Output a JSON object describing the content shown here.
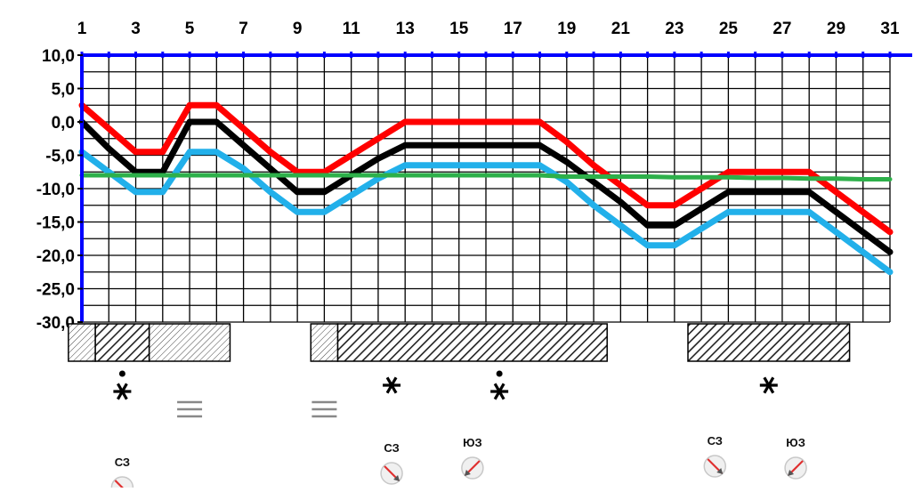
{
  "chart_data": {
    "type": "line",
    "x": [
      1,
      2,
      3,
      4,
      5,
      6,
      7,
      8,
      9,
      10,
      11,
      12,
      13,
      14,
      15,
      16,
      17,
      18,
      19,
      20,
      21,
      22,
      23,
      24,
      25,
      26,
      27,
      28,
      29,
      30,
      31
    ],
    "x_tick_labels": [
      "1",
      "3",
      "5",
      "7",
      "9",
      "11",
      "13",
      "15",
      "17",
      "19",
      "21",
      "23",
      "25",
      "27",
      "29",
      "31"
    ],
    "y_tick_labels": [
      "10,0",
      "5,0",
      "0,0",
      "-5,0",
      "-10,0",
      "-15,0",
      "-20,0",
      "-25,0",
      "-30,0"
    ],
    "ylim": [
      -30,
      10
    ],
    "xlim": [
      1,
      31
    ],
    "grid": true,
    "series": [
      {
        "color": "#ff0000",
        "values": [
          2.5,
          -1,
          -4.5,
          -4.5,
          2.5,
          2.5,
          -1,
          -4.5,
          -7.5,
          -7.5,
          -5,
          -2.5,
          0,
          0,
          0,
          0,
          0,
          0,
          -3,
          -6.5,
          -9.5,
          -12.5,
          -12.5,
          -10,
          -7.5,
          -7.5,
          -7.5,
          -7.5,
          -10.5,
          -13.5,
          -16.5
        ]
      },
      {
        "color": "#000000",
        "values": [
          0,
          -4,
          -7.5,
          -7.5,
          0,
          0,
          -3.5,
          -7,
          -10.5,
          -10.5,
          -8,
          -5.5,
          -3.5,
          -3.5,
          -3.5,
          -3.5,
          -3.5,
          -3.5,
          -6,
          -9,
          -12,
          -15.5,
          -15.5,
          -13,
          -10.5,
          -10.5,
          -10.5,
          -10.5,
          -13.5,
          -16.5,
          -19.5
        ]
      },
      {
        "color": "#22b0ea",
        "values": [
          -4.5,
          -7.5,
          -10.5,
          -10.5,
          -4.5,
          -4.5,
          -7,
          -10.5,
          -13.5,
          -13.5,
          -11,
          -8.5,
          -6.5,
          -6.5,
          -6.5,
          -6.5,
          -6.5,
          -6.5,
          -9,
          -12.5,
          -15.5,
          -18.5,
          -18.5,
          -16,
          -13.5,
          -13.5,
          -13.5,
          -13.5,
          -16.5,
          -19.5,
          -22.5
        ]
      },
      {
        "color": "#2db04a",
        "values": [
          -8,
          -8,
          -8,
          -8,
          -8,
          -8,
          -8,
          -8,
          -8,
          -8,
          -8,
          -8,
          -8,
          -8,
          -8,
          -8,
          -8,
          -8,
          -8.2,
          -8.2,
          -8.2,
          -8.2,
          -8.3,
          -8.3,
          -8.3,
          -8.4,
          -8.4,
          -8.5,
          -8.5,
          -8.6,
          -8.6
        ]
      }
    ],
    "precipitation_bars": [
      {
        "start_day": 1,
        "end_day": 1,
        "pattern": "light"
      },
      {
        "start_day": 2,
        "end_day": 3,
        "pattern": "dense"
      },
      {
        "start_day": 4,
        "end_day": 6,
        "pattern": "light"
      },
      {
        "start_day": 10,
        "end_day": 10,
        "pattern": "light"
      },
      {
        "start_day": 11,
        "end_day": 20,
        "pattern": "dense"
      },
      {
        "start_day": 24,
        "end_day": 29,
        "pattern": "dense"
      }
    ],
    "weather_symbols": [
      {
        "day": 2.5,
        "icon": "snow-shower-icon"
      },
      {
        "day": 5.0,
        "icon": "fog-icon"
      },
      {
        "day": 10.0,
        "icon": "fog-icon"
      },
      {
        "day": 12.5,
        "icon": "snow-icon"
      },
      {
        "day": 16.5,
        "icon": "snow-shower-icon"
      },
      {
        "day": 26.5,
        "icon": "snow-icon"
      }
    ],
    "wind": [
      {
        "day": 2.5,
        "label": "СЗ",
        "icon": "wind-northwest-icon"
      },
      {
        "day": 12.5,
        "label": "СЗ",
        "icon": "wind-northwest-icon"
      },
      {
        "day": 15.5,
        "label": "ЮЗ",
        "icon": "wind-southwest-icon"
      },
      {
        "day": 24.5,
        "label": "СЗ",
        "icon": "wind-northwest-icon"
      },
      {
        "day": 27.5,
        "label": "ЮЗ",
        "icon": "wind-southwest-icon"
      }
    ]
  }
}
